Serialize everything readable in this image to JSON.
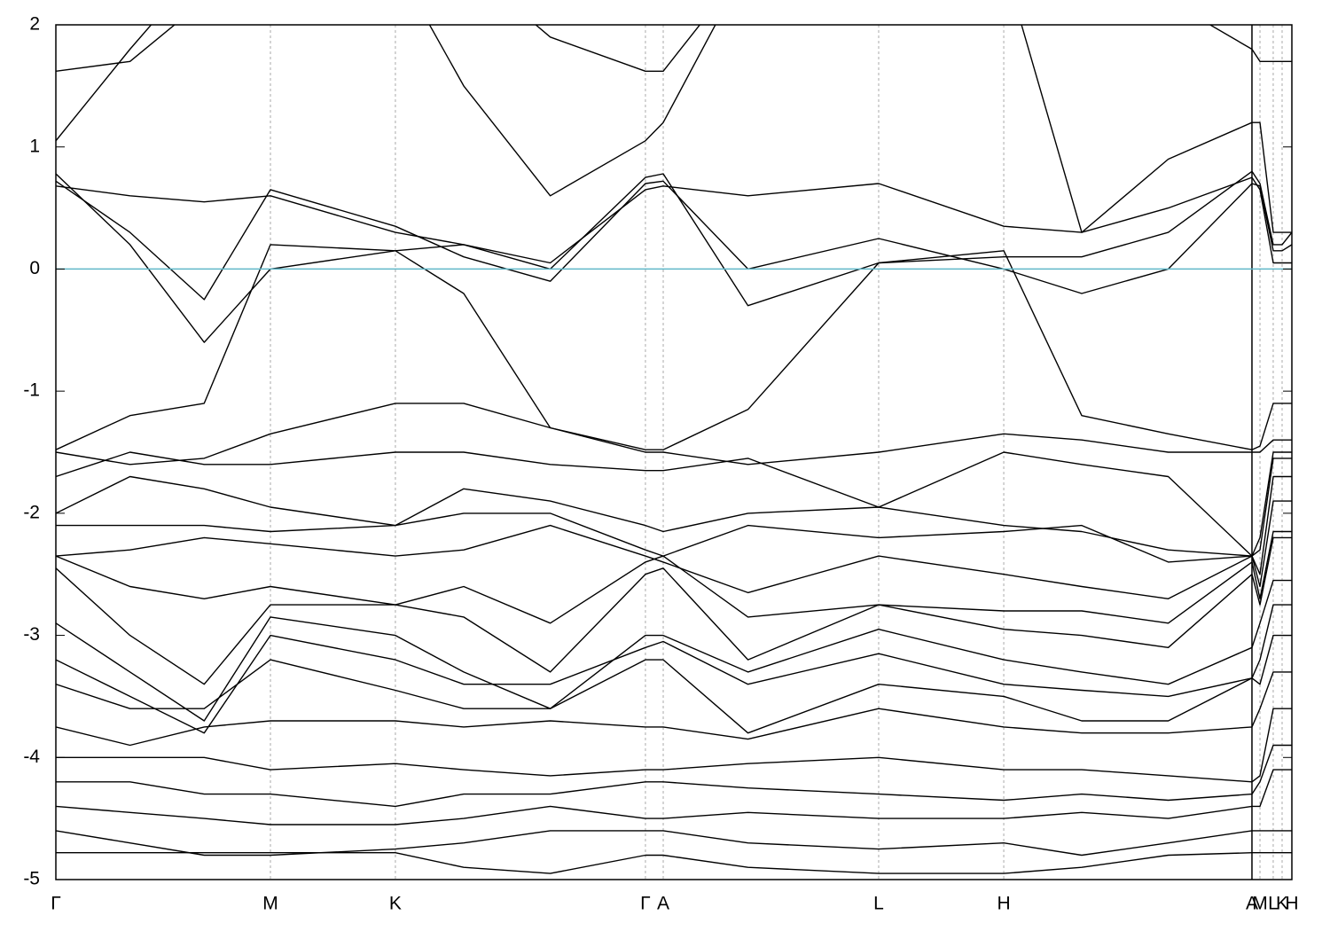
{
  "chart_data": {
    "type": "line",
    "color": "#000000",
    "reference_line": 0,
    "reference_color": "#5fb7c8",
    "grid": true,
    "xlim": [
      0,
      1
    ],
    "ylim": [
      -5,
      2
    ],
    "yticks": [
      -5,
      -4,
      -3,
      -2,
      -1,
      0,
      1,
      2
    ],
    "xticks": [
      {
        "value": 0,
        "label": "Γ"
      },
      {
        "value": 0.1736,
        "label": "M"
      },
      {
        "value": 0.2747,
        "label": "K"
      },
      {
        "value": 0.477,
        "label": "Γ"
      },
      {
        "value": 0.4914,
        "label": "A"
      },
      {
        "value": 0.6657,
        "label": "L"
      },
      {
        "value": 0.7669,
        "label": "H"
      },
      {
        "value": 0.9677,
        "label": "A"
      },
      {
        "value": 0.9742,
        "label": "M"
      },
      {
        "value": 0.9849,
        "label": "L"
      },
      {
        "value": 0.9921,
        "label": "K"
      },
      {
        "value": 1.0,
        "label": "H"
      }
    ],
    "x": [
      0,
      0.06,
      0.12,
      0.1736,
      0.2747,
      0.33,
      0.4,
      0.477,
      0.4914,
      0.56,
      0.6657,
      0.7669,
      0.83,
      0.9,
      0.9677,
      0.9742,
      0.9849,
      0.9921,
      1.0
    ],
    "series": [
      {
        "values": [
          0.78,
          0.2,
          -0.6,
          0.0,
          0.15,
          0.2,
          0.0,
          0.75,
          0.78,
          -0.3,
          0.05,
          0.1,
          0.1,
          0.3,
          0.8,
          0.7,
          0.2,
          0.2,
          0.3
        ]
      },
      {
        "values": [
          0.72,
          0.3,
          -0.25,
          0.65,
          0.35,
          0.1,
          -0.1,
          0.7,
          0.72,
          0.0,
          0.25,
          0.0,
          -0.2,
          0.0,
          0.7,
          0.68,
          0.15,
          0.15,
          0.2
        ]
      },
      {
        "values": [
          0.68,
          0.6,
          0.55,
          0.6,
          0.3,
          0.2,
          0.05,
          0.65,
          0.68,
          0.6,
          0.7,
          0.35,
          0.3,
          0.5,
          0.75,
          0.65,
          0.05,
          0.05,
          0.05
        ]
      },
      {
        "values": [
          1.05,
          1.8,
          2.5,
          2.5,
          2.5,
          1.5,
          0.6,
          1.05,
          1.2,
          2.5,
          2.5,
          2.5,
          0.3,
          0.9,
          1.2,
          1.2,
          0.3,
          0.3,
          0.3
        ]
      },
      {
        "values": [
          1.62,
          1.7,
          2.2,
          2.5,
          2.5,
          2.5,
          1.9,
          1.62,
          1.62,
          2.5,
          2.5,
          2.5,
          2.5,
          2.2,
          1.8,
          1.7,
          1.7,
          1.7,
          1.7
        ]
      },
      {
        "values": [
          -1.48,
          -1.2,
          -1.1,
          0.2,
          0.15,
          -0.2,
          -1.3,
          -1.48,
          -1.48,
          -1.15,
          0.05,
          0.15,
          -1.2,
          -1.35,
          -1.48,
          -1.45,
          -1.1,
          -1.1,
          -1.1
        ]
      },
      {
        "values": [
          -1.5,
          -1.6,
          -1.55,
          -1.35,
          -1.1,
          -1.1,
          -1.3,
          -1.5,
          -1.5,
          -1.6,
          -1.5,
          -1.35,
          -1.4,
          -1.5,
          -1.5,
          -1.5,
          -1.4,
          -1.4,
          -1.4
        ]
      },
      {
        "values": [
          -1.7,
          -1.5,
          -1.6,
          -1.6,
          -1.5,
          -1.5,
          -1.6,
          -1.65,
          -1.65,
          -1.55,
          -1.95,
          -1.5,
          -1.6,
          -1.7,
          -2.35,
          -2.2,
          -1.5,
          -1.5,
          -1.5
        ]
      },
      {
        "values": [
          -2.0,
          -1.7,
          -1.8,
          -1.95,
          -2.1,
          -1.8,
          -1.9,
          -2.1,
          -2.15,
          -2.0,
          -1.95,
          -2.1,
          -2.15,
          -2.3,
          -2.35,
          -2.3,
          -1.55,
          -1.55,
          -1.55
        ]
      },
      {
        "values": [
          -2.1,
          -2.1,
          -2.1,
          -2.15,
          -2.1,
          -2.0,
          -2.0,
          -2.3,
          -2.35,
          -2.1,
          -2.2,
          -2.15,
          -2.1,
          -2.4,
          -2.35,
          -2.5,
          -1.7,
          -1.7,
          -1.7
        ]
      },
      {
        "values": [
          -2.35,
          -2.3,
          -2.2,
          -2.25,
          -2.35,
          -2.3,
          -2.1,
          -2.35,
          -2.4,
          -2.65,
          -2.35,
          -2.5,
          -2.6,
          -2.7,
          -2.35,
          -2.6,
          -1.9,
          -1.9,
          -1.9
        ]
      },
      {
        "values": [
          -2.35,
          -2.6,
          -2.7,
          -2.6,
          -2.75,
          -2.6,
          -2.9,
          -2.4,
          -2.35,
          -2.85,
          -2.75,
          -2.8,
          -2.8,
          -2.9,
          -2.4,
          -2.7,
          -2.15,
          -2.15,
          -2.15
        ]
      },
      {
        "values": [
          -2.45,
          -3.0,
          -3.4,
          -2.75,
          -2.75,
          -2.85,
          -3.3,
          -2.5,
          -2.45,
          -3.2,
          -2.75,
          -2.95,
          -3.0,
          -3.1,
          -2.5,
          -2.75,
          -2.2,
          -2.2,
          -2.2
        ]
      },
      {
        "values": [
          -2.9,
          -3.3,
          -3.7,
          -2.85,
          -3.0,
          -3.3,
          -3.6,
          -3.0,
          -3.0,
          -3.3,
          -2.95,
          -3.2,
          -3.3,
          -3.4,
          -3.1,
          -2.9,
          -2.55,
          -2.55,
          -2.55
        ]
      },
      {
        "values": [
          -3.2,
          -3.5,
          -3.8,
          -3.0,
          -3.2,
          -3.4,
          -3.4,
          -3.1,
          -3.05,
          -3.4,
          -3.15,
          -3.4,
          -3.45,
          -3.5,
          -3.35,
          -3.2,
          -2.75,
          -2.75,
          -2.75
        ]
      },
      {
        "values": [
          -3.4,
          -3.6,
          -3.6,
          -3.2,
          -3.45,
          -3.6,
          -3.6,
          -3.2,
          -3.2,
          -3.8,
          -3.4,
          -3.5,
          -3.7,
          -3.7,
          -3.35,
          -3.4,
          -3.0,
          -3.0,
          -3.0
        ]
      },
      {
        "values": [
          -3.75,
          -3.9,
          -3.75,
          -3.7,
          -3.7,
          -3.75,
          -3.7,
          -3.75,
          -3.75,
          -3.85,
          -3.6,
          -3.75,
          -3.8,
          -3.8,
          -3.75,
          -3.6,
          -3.3,
          -3.3,
          -3.3
        ]
      },
      {
        "values": [
          -4.0,
          -4.0,
          -4.0,
          -4.1,
          -4.05,
          -4.1,
          -4.15,
          -4.1,
          -4.1,
          -4.05,
          -4.0,
          -4.1,
          -4.1,
          -4.15,
          -4.2,
          -4.15,
          -3.6,
          -3.6,
          -3.6
        ]
      },
      {
        "values": [
          -4.2,
          -4.2,
          -4.3,
          -4.3,
          -4.4,
          -4.3,
          -4.3,
          -4.2,
          -4.2,
          -4.25,
          -4.3,
          -4.35,
          -4.3,
          -4.35,
          -4.3,
          -4.2,
          -3.9,
          -3.9,
          -3.9
        ]
      },
      {
        "values": [
          -4.4,
          -4.45,
          -4.5,
          -4.55,
          -4.55,
          -4.5,
          -4.4,
          -4.5,
          -4.5,
          -4.45,
          -4.5,
          -4.5,
          -4.45,
          -4.5,
          -4.4,
          -4.4,
          -4.1,
          -4.1,
          -4.1
        ]
      },
      {
        "values": [
          -4.6,
          -4.7,
          -4.8,
          -4.8,
          -4.75,
          -4.7,
          -4.6,
          -4.6,
          -4.6,
          -4.7,
          -4.75,
          -4.7,
          -4.8,
          -4.7,
          -4.6,
          -4.6,
          -4.6,
          -4.6,
          -4.6
        ]
      },
      {
        "values": [
          -4.78,
          -4.78,
          -4.78,
          -4.78,
          -4.78,
          -4.9,
          -4.95,
          -4.8,
          -4.8,
          -4.9,
          -4.95,
          -4.95,
          -4.9,
          -4.8,
          -4.78,
          -4.78,
          -4.78,
          -4.78,
          -4.78
        ]
      }
    ]
  }
}
